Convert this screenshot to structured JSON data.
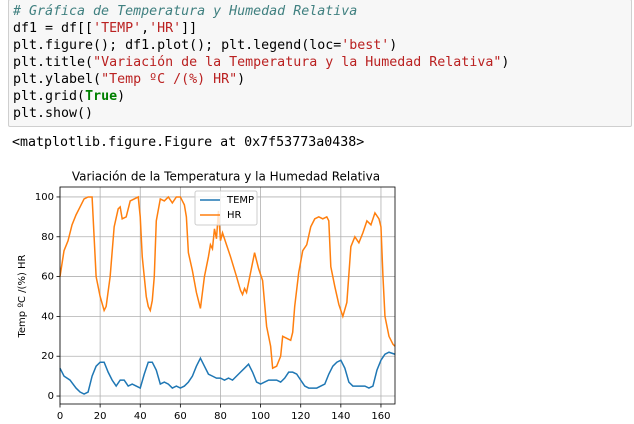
{
  "code_cell": {
    "lines": [
      [
        "# Gráfica de Temperatura y Humedad Relativa"
      ],
      [
        "df1 = df[[",
        "'TEMP'",
        ",",
        "'HR'",
        "]]"
      ],
      [
        "plt.figure(); df1.plot(); plt.legend(loc=",
        "'best'",
        ")"
      ],
      [
        "plt.title(",
        "\"Variación de la Temperatura y la Humedad Relativa\"",
        ")"
      ],
      [
        "plt.ylabel(",
        "\"Temp ºC /(%) HR\"",
        ")"
      ],
      [
        "plt.grid(",
        "True",
        ")"
      ],
      [
        "plt.show()"
      ]
    ]
  },
  "output": {
    "text": "<matplotlib.figure.Figure at 0x7f53773a0438>"
  },
  "chart_data": {
    "type": "line",
    "title": "Variación de la Temperatura y la Humedad Relativa",
    "ylabel": "Temp ºC /(%) HR",
    "xlim": [
      0,
      167
    ],
    "ylim": [
      -4,
      105
    ],
    "xticks": [
      0,
      20,
      40,
      60,
      80,
      100,
      120,
      140,
      160
    ],
    "yticks": [
      0,
      20,
      40,
      60,
      80,
      100
    ],
    "grid": true,
    "legend": "upper center",
    "series": [
      {
        "name": "TEMP",
        "color": "#1f77b4",
        "x": [
          0,
          2,
          5,
          8,
          10,
          12,
          14,
          16,
          18,
          20,
          22,
          24,
          26,
          28,
          30,
          32,
          34,
          36,
          38,
          40,
          42,
          44,
          46,
          48,
          50,
          52,
          54,
          56,
          58,
          60,
          62,
          64,
          66,
          68,
          70,
          72,
          74,
          76,
          78,
          80,
          82,
          84,
          86,
          88,
          90,
          92,
          94,
          96,
          98,
          100,
          102,
          104,
          106,
          108,
          110,
          112,
          114,
          116,
          118,
          120,
          122,
          124,
          126,
          128,
          130,
          132,
          134,
          136,
          138,
          140,
          142,
          144,
          146,
          148,
          150,
          152,
          154,
          156,
          158,
          160,
          162,
          164,
          167
        ],
        "values": [
          14,
          10,
          8,
          4,
          2,
          1,
          2,
          10,
          15,
          17,
          17,
          12,
          8,
          5,
          8,
          8,
          5,
          6,
          5,
          4,
          11,
          17,
          17,
          13,
          6,
          7,
          6,
          4,
          5,
          4,
          5,
          7,
          10,
          15,
          19,
          15,
          11,
          10,
          9,
          9,
          8,
          9,
          8,
          10,
          12,
          14,
          16,
          12,
          7,
          6,
          7,
          8,
          8,
          8,
          7,
          9,
          12,
          12,
          11,
          8,
          5,
          4,
          4,
          4,
          5,
          6,
          11,
          15,
          17,
          18,
          14,
          7,
          5,
          5,
          5,
          5,
          4,
          5,
          13,
          18,
          21,
          22,
          21
        ]
      },
      {
        "name": "HR",
        "color": "#ff7f0e",
        "x": [
          0,
          2,
          4,
          6,
          8,
          10,
          12,
          14,
          16,
          17,
          18,
          20,
          22,
          23,
          25,
          27,
          29,
          30,
          31,
          33,
          35,
          37,
          39,
          40,
          41,
          43,
          44,
          45,
          46,
          47,
          48,
          50,
          52,
          54,
          56,
          58,
          60,
          62,
          63,
          64,
          66,
          68,
          70,
          72,
          74,
          75,
          76,
          77,
          78,
          79,
          80,
          81,
          83,
          85,
          88,
          90,
          91,
          92,
          93,
          95,
          97,
          99,
          101,
          103,
          105,
          106,
          108,
          110,
          111,
          113,
          115,
          116,
          117,
          119,
          121,
          123,
          125,
          127,
          129,
          131,
          133,
          134,
          135,
          137,
          139,
          141,
          143,
          145,
          147,
          149,
          151,
          153,
          155,
          157,
          159,
          160,
          161,
          162,
          164,
          166,
          167
        ],
        "values": [
          60,
          73,
          78,
          86,
          91,
          95,
          99,
          100,
          100,
          80,
          60,
          50,
          43,
          45,
          60,
          85,
          94,
          95,
          89,
          90,
          98,
          99,
          100,
          90,
          70,
          50,
          45,
          43,
          48,
          60,
          88,
          99,
          98,
          100,
          97,
          100,
          100,
          96,
          90,
          72,
          63,
          52,
          44,
          60,
          70,
          76,
          74,
          84,
          79,
          93,
          78,
          82,
          76,
          70,
          60,
          53,
          51,
          54,
          52,
          62,
          72,
          64,
          58,
          35,
          25,
          14,
          15,
          20,
          30,
          29,
          28,
          32,
          45,
          62,
          73,
          76,
          85,
          89,
          90,
          89,
          90,
          88,
          65,
          55,
          46,
          40,
          47,
          75,
          80,
          77,
          82,
          88,
          86,
          92,
          89,
          85,
          60,
          40,
          30,
          26,
          25
        ]
      }
    ]
  }
}
